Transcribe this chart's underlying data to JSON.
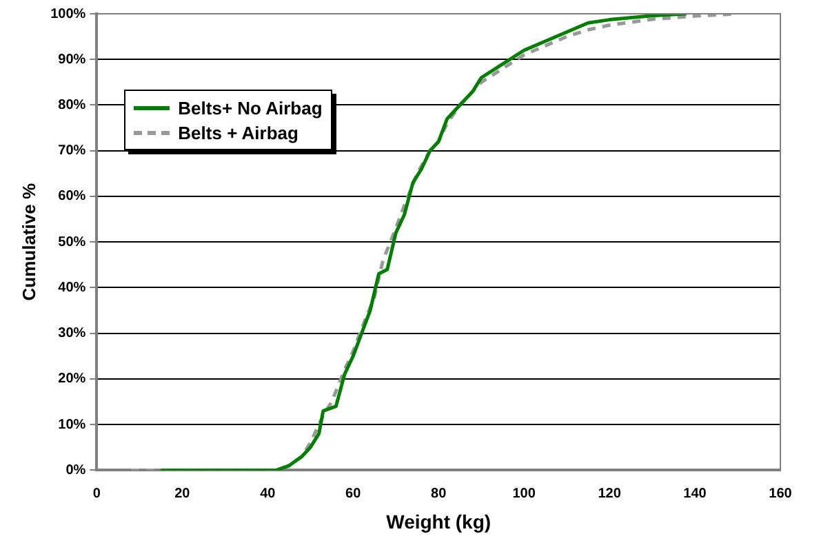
{
  "chart_data": {
    "type": "line",
    "xlabel": "Weight (kg)",
    "ylabel": "Cumulative %",
    "xlim": [
      0,
      160
    ],
    "xticks": [
      0,
      20,
      40,
      60,
      80,
      100,
      120,
      140,
      160
    ],
    "ylim": [
      0,
      100
    ],
    "yticks": [
      {
        "value": 0,
        "label": "0%"
      },
      {
        "value": 10,
        "label": "10%"
      },
      {
        "value": 20,
        "label": "20%"
      },
      {
        "value": 30,
        "label": "30%"
      },
      {
        "value": 40,
        "label": "40%"
      },
      {
        "value": 50,
        "label": "50%"
      },
      {
        "value": 60,
        "label": "60%"
      },
      {
        "value": 70,
        "label": "70%"
      },
      {
        "value": 80,
        "label": "80%"
      },
      {
        "value": 90,
        "label": "90%"
      },
      {
        "value": 100,
        "label": "100%"
      }
    ],
    "grid": "y",
    "legend": "top left",
    "marker": "none",
    "series": [
      {
        "name": "Belts+ No Airbag",
        "color": "#008000",
        "line_style": "solid",
        "x": [
          15,
          30,
          42,
          45,
          48,
          50,
          52,
          53,
          56,
          58,
          60,
          62,
          64,
          66,
          68,
          70,
          72,
          74,
          76,
          78,
          80,
          82,
          85,
          88,
          90,
          95,
          100,
          105,
          110,
          115,
          120,
          130,
          138
        ],
        "values": [
          0,
          0,
          0,
          1,
          3,
          5,
          8,
          13,
          14,
          21,
          25,
          30,
          35,
          43,
          44,
          52,
          56,
          63,
          66,
          70,
          72,
          77,
          80,
          83,
          86,
          89,
          92,
          94,
          96,
          98,
          98.7,
          99.6,
          100
        ]
      },
      {
        "name": "Belts + Airbag",
        "color": "#999999",
        "line_style": "dashed",
        "x": [
          8,
          30,
          42,
          45,
          48,
          50,
          53,
          55,
          58,
          60,
          62,
          65,
          67,
          70,
          72,
          75,
          78,
          80,
          82,
          85,
          88,
          90,
          95,
          100,
          105,
          110,
          115,
          120,
          130,
          140,
          150
        ],
        "values": [
          0,
          0,
          0,
          1,
          3,
          6,
          12,
          15,
          22,
          26,
          31,
          38,
          46,
          53,
          58,
          65,
          70,
          72,
          76,
          80,
          83,
          85,
          88,
          91,
          93,
          95,
          96.5,
          97.5,
          98.8,
          99.5,
          100
        ]
      }
    ]
  }
}
